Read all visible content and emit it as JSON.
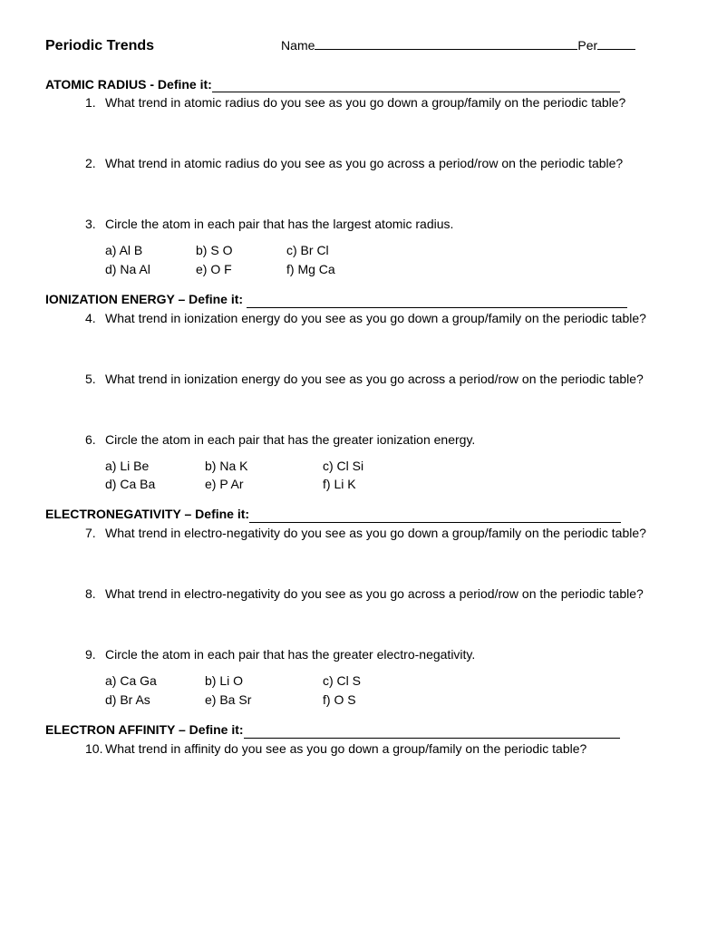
{
  "header": {
    "title": "Periodic Trends",
    "name_label": "Name",
    "per_label": "Per"
  },
  "sections": {
    "atomic_radius": {
      "heading": "ATOMIC RADIUS - Define it:",
      "blank_width": 450,
      "q1_num": "1.",
      "q1_text": "What trend in atomic radius do you see as you go down a group/family on the periodic table?",
      "q2_num": "2.",
      "q2_text": "What trend in atomic radius do you see as you go across a period/row on the periodic table?",
      "q3_num": "3.",
      "q3_text": "Circle the atom in each pair that has the largest atomic radius.",
      "pairs": {
        "a": "a)  Al   B",
        "b": "b) S  O",
        "c": "c) Br  Cl",
        "d": "d) Na  Al",
        "e": "e) O   F",
        "f": "f) Mg   Ca"
      }
    },
    "ionization_energy": {
      "heading": "IONIZATION ENERGY – Define it: ",
      "blank_width": 420,
      "q4_num": "4.",
      "q4_text": "What trend in ionization energy do you see as you go down a group/family on the periodic table?",
      "q5_num": "5.",
      "q5_text": " What trend in ionization energy do you see as you go across a period/row on the periodic table?",
      "q6_num": "6.",
      "q6_text": "Circle the atom in each pair that has the greater ionization energy.",
      "pairs": {
        "a": "a) Li   Be",
        "b": "b) Na   K",
        "c": "c) Cl   Si",
        "d": "d) Ca  Ba",
        "e": "e) P     Ar",
        "f": "f) Li   K"
      }
    },
    "electronegativity": {
      "heading": "ELECTRONEGATIVITY – Define it:",
      "blank_width": 410,
      "q7_num": "7.",
      "q7_text": "What trend in electro-negativity do you see as you go down a group/family on the periodic table?",
      "q8_num": "8.",
      "q8_text": "What trend in electro-negativity do you see as you go across a period/row on the periodic table?",
      "q9_num": "9.",
      "q9_text": "Circle the atom in each pair that has the greater electro-negativity.",
      "pairs": {
        "a": "a) Ca   Ga",
        "b": "b) Li  O",
        "c": "c) Cl   S",
        "d": "d) Br   As",
        "e": "e) Ba  Sr",
        "f": "f) O   S"
      }
    },
    "electron_affinity": {
      "heading": "ELECTRON AFFINITY – Define it:",
      "blank_width": 415,
      "q10_num": "10.",
      "q10_text": "What trend in affinity do you see as you go down a group/family on the periodic table?"
    }
  }
}
